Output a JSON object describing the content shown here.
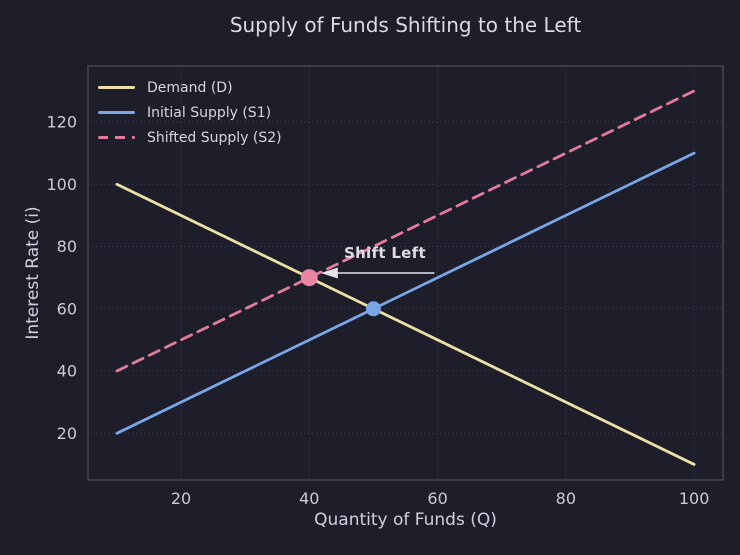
{
  "chart_data": {
    "type": "line",
    "title": "Supply of Funds Shifting to the Left",
    "xlabel": "Quantity of Funds (Q)",
    "ylabel": "Interest Rate (i)",
    "xlim": [
      5.5,
      104.5
    ],
    "ylim": [
      5,
      138
    ],
    "xticks": [
      20,
      40,
      60,
      80,
      100
    ],
    "yticks": [
      20,
      40,
      60,
      80,
      100,
      120
    ],
    "grid": "dotted",
    "legend_position": "upper-left",
    "series": [
      {
        "name": "Demand (D)",
        "color": "#ece0a6",
        "style": "solid",
        "x": [
          10,
          100
        ],
        "y": [
          100,
          10
        ]
      },
      {
        "name": "Initial Supply (S1)",
        "color": "#7aa6e8",
        "style": "solid",
        "x": [
          10,
          100
        ],
        "y": [
          20,
          110
        ]
      },
      {
        "name": "Shifted Supply (S2)",
        "color": "#e27b9a",
        "style": "dashed",
        "x": [
          10,
          100
        ],
        "y": [
          40,
          130
        ]
      }
    ],
    "points": [
      {
        "label": "equilibrium-new",
        "x": 40,
        "y": 70,
        "color": "#ec85a3",
        "radius": 8.5
      },
      {
        "label": "equilibrium-initial",
        "x": 50,
        "y": 60,
        "color": "#7aa6e8",
        "radius": 7.5
      }
    ],
    "annotation": {
      "text": "Shift Left",
      "text_x": 51.8,
      "text_y": 77.8,
      "arrow_from_x": 59.5,
      "arrow_from_y": 71.5,
      "arrow_to_x": 41.8,
      "arrow_to_y": 71.5,
      "color": "#e3e4ea"
    },
    "colors": {
      "background": "#1e1e2a",
      "grid": "#41415a",
      "spine": "#4b4b5c",
      "tick_label": "#c9cbda",
      "axis_label": "#cfd1e0",
      "title": "#d9dbe8",
      "annotation_text": "#dcdde6"
    }
  }
}
